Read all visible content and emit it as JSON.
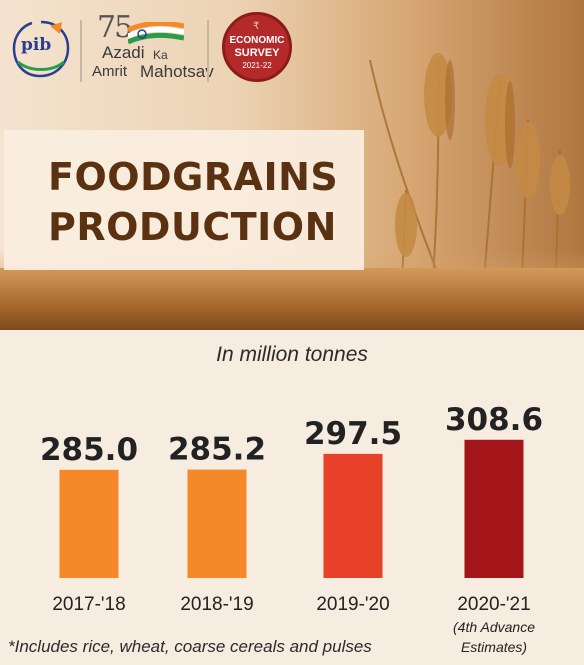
{
  "logos": {
    "pib": "pib",
    "azadi_75": "75",
    "azadi_line1": "Azadi",
    "azadi_ka": "Ka",
    "azadi_amrit": "Amrit",
    "azadi_mahotsav": "Mahotsav",
    "survey_l1": "ECONOMIC",
    "survey_l2": "SURVEY",
    "survey_l3": "2021-22"
  },
  "title_lines": [
    "FOODGRAINS",
    "PRODUCTION"
  ],
  "unit_note": "In million tonnes",
  "footnote": "*Includes rice, wheat, coarse cereals and pulses",
  "colors": {
    "bar_2017": "#f5892a",
    "bar_2018": "#f5892a",
    "bar_2019": "#e8412a",
    "bar_2020": "#a31519",
    "title": "#5a3211"
  },
  "chart_data": {
    "type": "bar",
    "categories": [
      "2017-'18",
      "2018-'19",
      "2019-'20",
      "2020-'21"
    ],
    "category_notes": [
      "",
      "",
      "",
      "(4th Advance\nEstimates)"
    ],
    "values": [
      285.0,
      285.2,
      297.5,
      308.6
    ],
    "value_labels": [
      "285.0",
      "285.2",
      "297.5",
      "308.6"
    ],
    "title": "FOODGRAINS PRODUCTION",
    "ylabel": "In million tonnes",
    "ylim": [
      200,
      310
    ],
    "grid": false,
    "legend": "none"
  }
}
